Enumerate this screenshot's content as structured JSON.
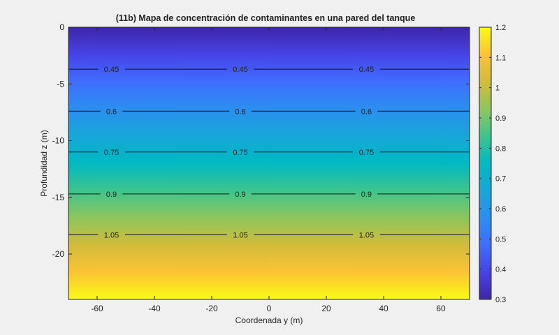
{
  "chart_data": {
    "type": "heatmap",
    "title": "(11b) Mapa de concentración de contaminantes en una pared del tanque",
    "xlabel": "Coordenada y (m)",
    "ylabel": "Profundidad z (m)",
    "xlim": [
      -70,
      70
    ],
    "ylim": [
      -24,
      0
    ],
    "xticks": [
      "-60",
      "-40",
      "-20",
      "0",
      "20",
      "40",
      "60"
    ],
    "xtick_values": [
      -60,
      -40,
      -20,
      0,
      20,
      40,
      60
    ],
    "yticks": [
      "0",
      "-5",
      "-10",
      "-15",
      "-20"
    ],
    "ytick_values": [
      0,
      -5,
      -10,
      -15,
      -20
    ],
    "colorbar": {
      "min": 0.3,
      "max": 1.2,
      "ticks": [
        "0.3",
        "0.4",
        "0.5",
        "0.6",
        "0.7",
        "0.8",
        "0.9",
        "1",
        "1.1",
        "1.2"
      ],
      "tick_values": [
        0.3,
        0.4,
        0.5,
        0.6,
        0.7,
        0.8,
        0.9,
        1.0,
        1.1,
        1.2
      ],
      "colormap": "parula"
    },
    "field": {
      "value_at_top": 0.3,
      "value_at_bottom": 1.2,
      "varies_with": "z",
      "z_top": 0,
      "z_bottom": -24
    },
    "contours": [
      {
        "level": 0.45,
        "label": "0.45",
        "z": -3.7,
        "label_x": [
          -55,
          -10,
          34
        ]
      },
      {
        "level": 0.6,
        "label": "0.6",
        "z": -7.4,
        "label_x": [
          -55,
          -10,
          34
        ]
      },
      {
        "level": 0.75,
        "label": "0.75",
        "z": -11.0,
        "label_x": [
          -55,
          -10,
          34
        ]
      },
      {
        "level": 0.9,
        "label": "0.9",
        "z": -14.7,
        "label_x": [
          -55,
          -10,
          34
        ]
      },
      {
        "level": 1.05,
        "label": "1.05",
        "z": -18.3,
        "label_x": [
          -55,
          -10,
          34
        ]
      }
    ]
  }
}
